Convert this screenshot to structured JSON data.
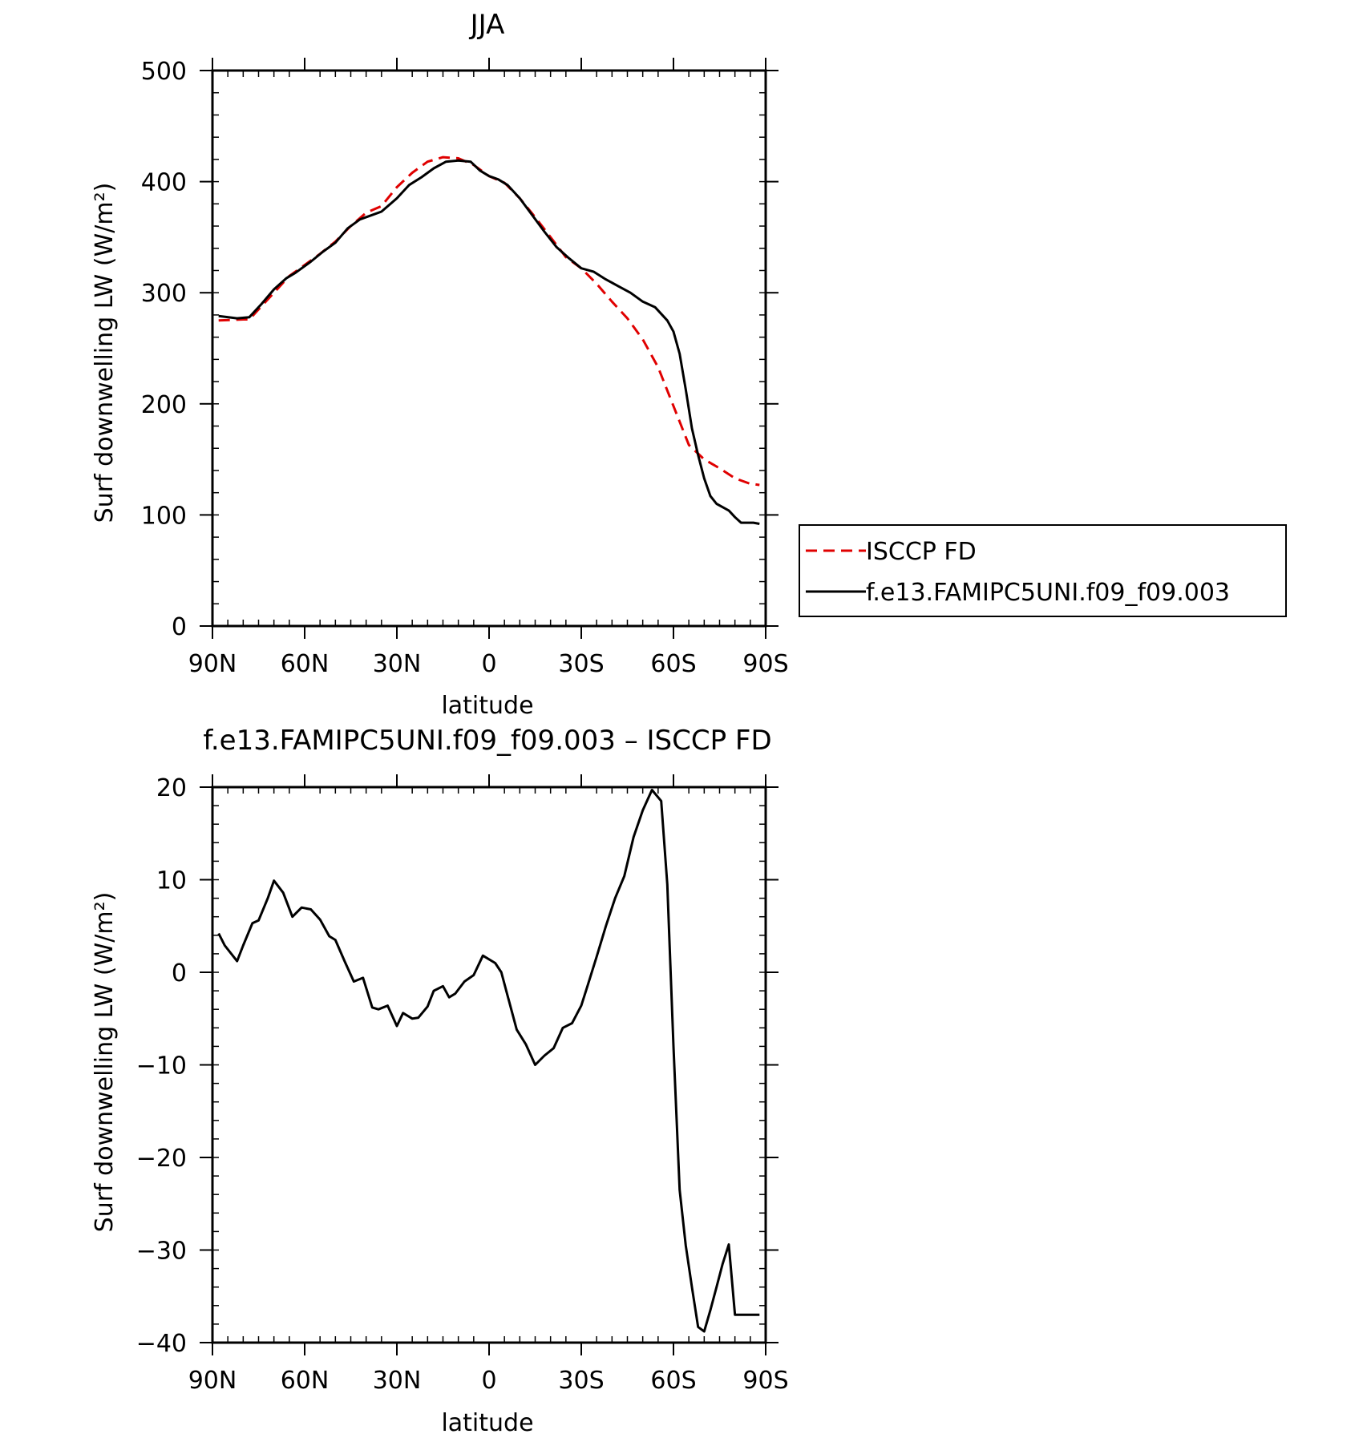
{
  "chart_data": [
    {
      "type": "line",
      "title": "JJA",
      "xlabel": "latitude",
      "ylabel": "Surf downwelling LW (W/m²)",
      "xlim": [
        90,
        -90
      ],
      "ylim": [
        0,
        500
      ],
      "x_ticks": [
        90,
        60,
        30,
        0,
        -30,
        -60,
        -90
      ],
      "x_tick_labels": [
        "90N",
        "60N",
        "30N",
        "0",
        "30S",
        "60S",
        "90S"
      ],
      "y_ticks": [
        0,
        100,
        200,
        300,
        400,
        500
      ],
      "y_tick_labels": [
        "0",
        "100",
        "200",
        "300",
        "400",
        "500"
      ],
      "legend": {
        "position": "right",
        "entries": [
          "ISCCP FD",
          "f.e13.FAMIPC5UNI.f09_f09.003"
        ]
      },
      "series": [
        {
          "name": "ISCCP FD",
          "color": "#e00000",
          "style": "dashed",
          "x": [
            88,
            80,
            78,
            70,
            65,
            60,
            55,
            50,
            45,
            40,
            35,
            30,
            25,
            20,
            15,
            10,
            5,
            0,
            -5,
            -10,
            -15,
            -20,
            -25,
            -30,
            -35,
            -40,
            -45,
            -50,
            -55,
            -60,
            -65,
            -70,
            -75,
            -80,
            -85,
            -88
          ],
          "y": [
            275,
            276,
            276,
            300,
            315,
            325,
            335,
            346,
            360,
            372,
            378,
            395,
            408,
            418,
            422,
            421,
            415,
            405,
            399,
            385,
            368,
            350,
            332,
            322,
            308,
            292,
            277,
            258,
            233,
            198,
            163,
            150,
            142,
            133,
            128,
            127
          ]
        },
        {
          "name": "f.e13.FAMIPC5UNI.f09_f09.003",
          "color": "#000000",
          "style": "solid",
          "x": [
            88,
            82,
            78,
            74,
            70,
            66,
            63,
            58,
            54,
            50,
            46,
            42,
            38,
            35,
            30,
            26,
            22,
            18,
            14,
            10,
            6,
            3,
            0,
            -3,
            -6,
            -10,
            -14,
            -18,
            -22,
            -26,
            -30,
            -34,
            -38,
            -42,
            -46,
            -50,
            -54,
            -58,
            -60,
            -62,
            -64,
            -66,
            -68,
            -70,
            -72,
            -74,
            -76,
            -78,
            -80,
            -82,
            -84,
            -86,
            -88
          ],
          "y": [
            279,
            277,
            278,
            290,
            303,
            313,
            318,
            328,
            337,
            345,
            358,
            366,
            370,
            373,
            385,
            397,
            404,
            412,
            418,
            419,
            418,
            410,
            405,
            402,
            397,
            385,
            370,
            355,
            341,
            331,
            322,
            319,
            312,
            306,
            300,
            292,
            287,
            275,
            265,
            245,
            213,
            178,
            154,
            133,
            117,
            110,
            107,
            104,
            98,
            93,
            93,
            93,
            92
          ]
        }
      ]
    },
    {
      "type": "line",
      "title": "f.e13.FAMIPC5UNI.f09_f09.003 – ISCCP FD",
      "xlabel": "latitude",
      "ylabel": "Surf downwelling LW (W/m²)",
      "xlim": [
        90,
        -90
      ],
      "ylim": [
        -40,
        20
      ],
      "x_ticks": [
        90,
        60,
        30,
        0,
        -30,
        -60,
        -90
      ],
      "x_tick_labels": [
        "90N",
        "60N",
        "30N",
        "0",
        "30S",
        "60S",
        "90S"
      ],
      "y_ticks": [
        -40,
        -30,
        -20,
        -10,
        0,
        10,
        20
      ],
      "y_tick_labels": [
        "−40",
        "−30",
        "−20",
        "−10",
        "0",
        "10",
        "20"
      ],
      "series": [
        {
          "color": "#000000",
          "style": "solid",
          "x": [
            88,
            86,
            82,
            80,
            77,
            75,
            72,
            70,
            67,
            64,
            61,
            58,
            55,
            52,
            50,
            47,
            44,
            41,
            38,
            36,
            33,
            30,
            28,
            25,
            23,
            20,
            18,
            15,
            13,
            11,
            8,
            5,
            2,
            -2,
            -4,
            -6,
            -9,
            -12,
            -15,
            -18,
            -21,
            -24,
            -27,
            -30,
            -32,
            -35,
            -38,
            -41,
            -44,
            -47,
            -50,
            -53,
            -56,
            -58,
            -60,
            -62,
            -64,
            -66,
            -68,
            -70,
            -72,
            -74,
            -76,
            -78,
            -80,
            -82,
            -84,
            -86,
            -88
          ],
          "y": [
            4.2,
            2.9,
            1.2,
            2.9,
            5.3,
            5.6,
            8.0,
            9.9,
            8.6,
            6.0,
            7.0,
            6.8,
            5.7,
            3.9,
            3.5,
            1.2,
            -1.0,
            -0.6,
            -3.8,
            -4.0,
            -3.6,
            -5.8,
            -4.4,
            -5.0,
            -4.9,
            -3.7,
            -2.0,
            -1.5,
            -2.7,
            -2.3,
            -1.0,
            -0.3,
            1.8,
            1.0,
            0.0,
            -2.5,
            -6.2,
            -7.8,
            -10.0,
            -9.0,
            -8.2,
            -6.0,
            -5.5,
            -3.6,
            -1.5,
            1.7,
            5.0,
            8.0,
            10.4,
            14.6,
            17.5,
            19.7,
            18.5,
            9.5,
            -8.0,
            -23.5,
            -29.5,
            -34.0,
            -38.3,
            -38.8,
            -36.5,
            -34.0,
            -31.5,
            -29.4,
            -37.0,
            -37.0,
            -37.0,
            -37.0,
            -37.0
          ]
        }
      ]
    }
  ]
}
